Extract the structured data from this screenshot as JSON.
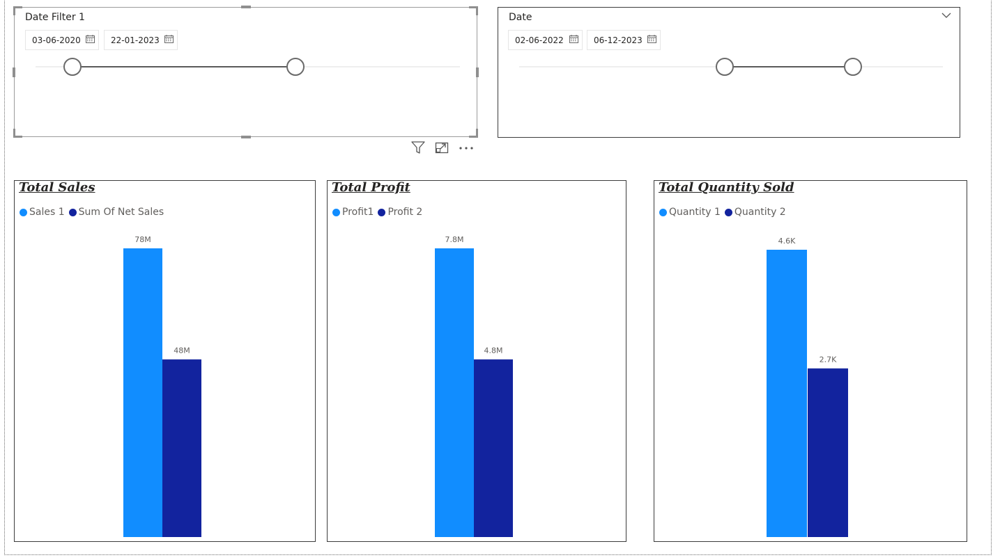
{
  "slicers": [
    {
      "title": "Date Filter 1",
      "start_date": "03-06-2020",
      "end_date": "22-01-2023"
    },
    {
      "title": "Date",
      "start_date": "02-06-2022",
      "end_date": "06-12-2023"
    }
  ],
  "icons": {
    "calendar": "calendar-icon",
    "dropdown": "chevron-down-icon",
    "filter": "filter-icon",
    "focus_mode": "focus-mode-icon",
    "more_options": "more-options-icon"
  },
  "colors": {
    "series_light": "#118dff",
    "series_dark": "#12239e",
    "border": "#3b3b3b"
  },
  "chart_data": [
    {
      "type": "bar",
      "title": "Total Sales",
      "series": [
        {
          "name": "Sales 1",
          "value": 78,
          "label": "78M",
          "color": "#118dff"
        },
        {
          "name": "Sum Of Net Sales",
          "value": 48,
          "label": "48M",
          "color": "#12239e"
        }
      ],
      "units": "M",
      "grid": false,
      "legend_position": "top-left"
    },
    {
      "type": "bar",
      "title": "Total Profit",
      "series": [
        {
          "name": "Profit1",
          "value": 7.8,
          "label": "7.8M",
          "color": "#118dff"
        },
        {
          "name": "Profit 2",
          "value": 4.8,
          "label": "4.8M",
          "color": "#12239e"
        }
      ],
      "units": "M",
      "grid": false,
      "legend_position": "top-left"
    },
    {
      "type": "bar",
      "title": "Total Quantity Sold",
      "series": [
        {
          "name": "Quantity 1",
          "value": 4.6,
          "label": "4.6K",
          "color": "#118dff"
        },
        {
          "name": "Quantity 2",
          "value": 2.7,
          "label": "2.7K",
          "color": "#12239e"
        }
      ],
      "units": "K",
      "grid": false,
      "legend_position": "top-left"
    }
  ]
}
